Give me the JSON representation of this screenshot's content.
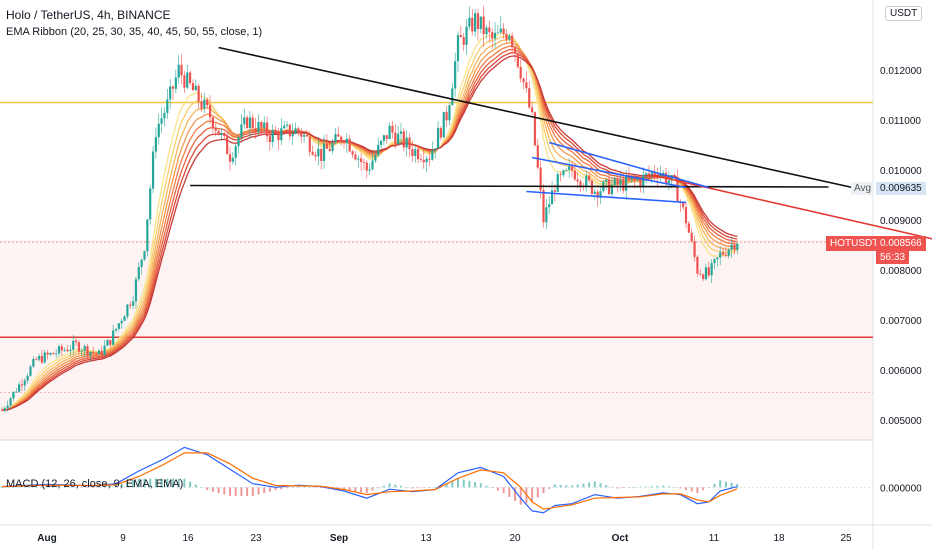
{
  "header": {
    "title": "Holo / TetherUS, 4h, BINANCE",
    "indicator": "EMA Ribbon (20, 25, 30, 35, 40, 45, 50, 55, close, 1)",
    "macd": "MACD (12, 26, close, 9, EMA, EMA)",
    "currency_button": "USDT"
  },
  "price_tags": {
    "avg_label": "Avg",
    "avg_value": "0.009635",
    "symbol": "HOTUSDT",
    "symbol_value": "0.008566",
    "countdown": "56:33"
  },
  "colors": {
    "up": "#26a69a",
    "down": "#ef5350",
    "yellow_level": "#f6c343",
    "red_level": "#e53935",
    "black_line": "#111111",
    "blue_line": "#2962ff",
    "macd_line": "#2962ff",
    "signal_line": "#ff6d00"
  },
  "chart_data": [
    {
      "type": "candlestick",
      "x_ticks": [
        "Aug",
        "9",
        "16",
        "23",
        "Sep",
        "13",
        "20",
        "Oct",
        "11",
        "18",
        "25"
      ],
      "y_ticks": [
        "0.012000",
        "0.011000",
        "0.010000",
        "0.009000",
        "0.008000",
        "0.007000",
        "0.006000",
        "0.005000"
      ],
      "ylim": [
        0.0046,
        0.0134
      ],
      "xlim": [
        0,
        153
      ],
      "key_points": [
        [
          0,
          0.0052
        ],
        [
          6,
          0.0062
        ],
        [
          13,
          0.0065
        ],
        [
          17,
          0.0063
        ],
        [
          19,
          0.0066
        ],
        [
          23,
          0.0075
        ],
        [
          25,
          0.0085
        ],
        [
          27,
          0.0108
        ],
        [
          29,
          0.0113
        ],
        [
          31,
          0.012
        ],
        [
          34,
          0.0115
        ],
        [
          37,
          0.011
        ],
        [
          40,
          0.0103
        ],
        [
          43,
          0.011
        ],
        [
          47,
          0.0107
        ],
        [
          52,
          0.0108
        ],
        [
          56,
          0.0103
        ],
        [
          60,
          0.0107
        ],
        [
          64,
          0.01
        ],
        [
          68,
          0.0108
        ],
        [
          72,
          0.0104
        ],
        [
          75,
          0.0103
        ],
        [
          78,
          0.0111
        ],
        [
          80,
          0.0125
        ],
        [
          83,
          0.013
        ],
        [
          86,
          0.0126
        ],
        [
          89,
          0.0128
        ],
        [
          91,
          0.012
        ],
        [
          93,
          0.011
        ],
        [
          95,
          0.009
        ],
        [
          97,
          0.0097
        ],
        [
          100,
          0.01
        ],
        [
          104,
          0.0096
        ],
        [
          108,
          0.0097
        ],
        [
          112,
          0.0098
        ],
        [
          115,
          0.01
        ],
        [
          118,
          0.0097
        ],
        [
          120,
          0.009
        ],
        [
          122,
          0.008
        ],
        [
          124,
          0.0079
        ],
        [
          126,
          0.0083
        ],
        [
          128,
          0.0085
        ],
        [
          129,
          0.0086
        ]
      ],
      "ema_ribbon_periods": [
        20,
        25,
        30,
        35,
        40,
        45,
        50,
        55
      ],
      "horizontal_levels": [
        {
          "value": 0.01135,
          "color": "#f6c343"
        },
        {
          "value": 0.006655,
          "color": "#e53935"
        },
        {
          "value": 0.00856,
          "color": "#ef9a9a"
        },
        {
          "value": 0.00555,
          "color": "#f3b5b5"
        }
      ],
      "drawn_lines": [
        {
          "color": "#111111",
          "from": [
            38,
            0.01245
          ],
          "to": [
            150,
            0.00963
          ]
        },
        {
          "color": "#111111",
          "from": [
            33,
            0.00969
          ],
          "to": [
            145,
            0.00966
          ]
        },
        {
          "color": "#e53935",
          "from": [
            114,
            0.0099
          ],
          "to": [
            188,
            0.00798
          ]
        },
        {
          "color": "#2962ff",
          "from": [
            93,
            0.01025
          ],
          "to": [
            120,
            0.00965
          ]
        },
        {
          "color": "#2962ff",
          "from": [
            96,
            0.01055
          ],
          "to": [
            124,
            0.00965
          ]
        },
        {
          "color": "#2962ff",
          "from": [
            92,
            0.00957
          ],
          "to": [
            120,
            0.00935
          ]
        }
      ]
    },
    {
      "type": "line",
      "name_text": "MACD (12, 26, close, 9, EMA, EMA)",
      "y_ticks": [
        "0.000000"
      ],
      "ylim": [
        -0.0009,
        0.00125
      ],
      "series": [
        {
          "name": "MACD",
          "x": [
            0,
            8,
            16,
            20,
            24,
            28,
            32,
            36,
            40,
            44,
            48,
            52,
            56,
            60,
            64,
            68,
            72,
            76,
            80,
            84,
            88,
            91,
            93,
            95,
            97,
            100,
            104,
            108,
            112,
            116,
            119,
            122,
            124,
            126,
            129
          ],
          "values": [
            2e-05,
            8e-05,
            4e-05,
            0.0001,
            0.00045,
            0.00075,
            0.0011,
            0.0009,
            0.0005,
            0.0001,
            0.0,
            6e-05,
            2e-05,
            -0.0001,
            -0.0003,
            -5e-05,
            -0.00012,
            -6e-05,
            0.0004,
            0.00055,
            0.0003,
            -0.0003,
            -0.00065,
            -0.0007,
            -0.0005,
            -0.00045,
            -0.0002,
            -0.0003,
            -0.00025,
            -0.00015,
            -0.0002,
            -0.00045,
            -0.0004,
            -0.0001,
            2e-05
          ]
        },
        {
          "name": "Signal",
          "x": [
            0,
            8,
            16,
            20,
            24,
            28,
            32,
            36,
            40,
            44,
            48,
            52,
            56,
            60,
            64,
            68,
            72,
            76,
            80,
            84,
            88,
            91,
            93,
            95,
            97,
            100,
            104,
            108,
            112,
            116,
            119,
            122,
            124,
            126,
            129
          ],
          "values": [
            2e-05,
            6e-05,
            5e-05,
            7e-05,
            0.0003,
            0.0006,
            0.00095,
            0.00095,
            0.00065,
            0.00025,
            5e-05,
            4e-05,
            3e-05,
            -6e-05,
            -0.0002,
            -0.00012,
            -0.0001,
            -6e-05,
            0.00025,
            0.00048,
            0.0004,
            0.0,
            -0.0004,
            -0.0006,
            -0.00055,
            -0.00048,
            -0.0003,
            -0.00028,
            -0.00026,
            -0.00018,
            -0.00018,
            -0.00035,
            -0.0004,
            -0.00022,
            -4e-05
          ]
        }
      ]
    }
  ]
}
